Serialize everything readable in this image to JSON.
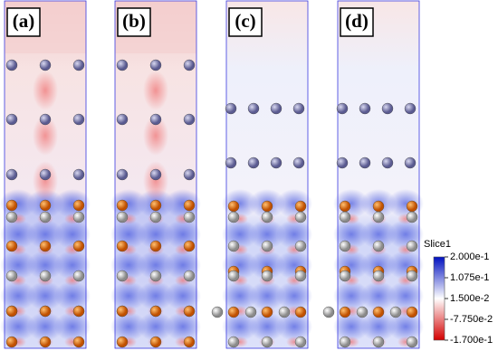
{
  "panels": [
    {
      "label": "(a)"
    },
    {
      "label": "(b)"
    },
    {
      "label": "(c)"
    },
    {
      "label": "(d)"
    }
  ],
  "colorbar": {
    "title": "Slice1",
    "lim": [
      -0.17,
      0.2
    ],
    "colors": [
      "#d40000",
      "#ffffff",
      "#0010c0"
    ],
    "ticks": [
      {
        "value": 0.2,
        "label": "2.000e-1"
      },
      {
        "value": 0.1075,
        "label": "1.075e-1"
      },
      {
        "value": 0.015,
        "label": "1.500e-2"
      },
      {
        "value": -0.0775,
        "label": "-7.750e-2"
      },
      {
        "value": -0.17,
        "label": "-1.700e-1"
      }
    ]
  }
}
